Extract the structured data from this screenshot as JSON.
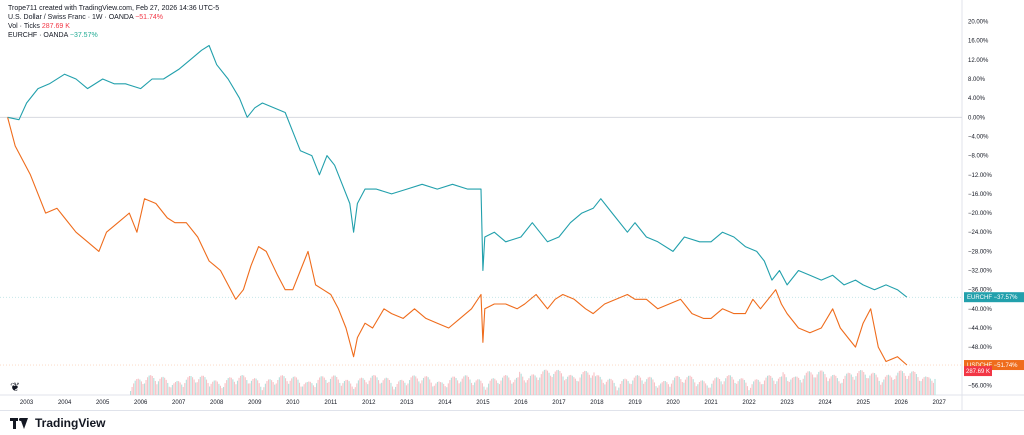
{
  "header": {
    "creator_line": "Trope711 created with TradingView.com, Feb 27, 2026 14:36 UTC-5",
    "main_symbol": "U.S. Dollar / Swiss Franc · 1W · OANDA",
    "main_change": "−51.74%",
    "vol_label": "Vol · Ticks",
    "vol_value": "287.69 K",
    "compare_symbol": "EURCHF · OANDA",
    "compare_change": "−37.57%"
  },
  "footer": {
    "brand": "TradingView"
  },
  "colors": {
    "usdchf": "#ef6c1c",
    "eurchf": "#22a0ac",
    "vol_up": "#b2dfdb",
    "vol_down": "#f7c1c5",
    "grid": "#eef0f3",
    "zero_line": "#d1d4dc"
  },
  "chart_data": {
    "type": "line",
    "title": "",
    "xlabel": "",
    "ylabel": "",
    "ylim": [
      -58,
      22
    ],
    "xlim": [
      2002.3,
      2027.6
    ],
    "x_ticks": [
      "2003",
      "2004",
      "2005",
      "2006",
      "2007",
      "2008",
      "2009",
      "2010",
      "2011",
      "2012",
      "2013",
      "2014",
      "2015",
      "2016",
      "2017",
      "2018",
      "2019",
      "2020",
      "2021",
      "2022",
      "2023",
      "2024",
      "2025",
      "2026",
      "2027"
    ],
    "y_ticks": [
      "20.00%",
      "16.00%",
      "12.00%",
      "8.00%",
      "4.00%",
      "0.00%",
      "−4.00%",
      "−8.00%",
      "−12.00%",
      "−16.00%",
      "−20.00%",
      "−24.00%",
      "−28.00%",
      "−32.00%",
      "−36.00%",
      "−40.00%",
      "−44.00%",
      "−48.00%",
      "−52.00%",
      "−56.00%"
    ],
    "y_tick_values": [
      20,
      16,
      12,
      8,
      4,
      0,
      -4,
      -8,
      -12,
      -16,
      -20,
      -24,
      -28,
      -32,
      -36,
      -40,
      -44,
      -48,
      -52,
      -56
    ],
    "series": [
      {
        "name": "EURCHF",
        "last_label": "EURCHF",
        "last_value": "−37.57%",
        "x": [
          2002.5,
          2002.8,
          2003.0,
          2003.3,
          2003.6,
          2004.0,
          2004.3,
          2004.6,
          2005.0,
          2005.3,
          2005.6,
          2006.0,
          2006.3,
          2006.6,
          2007.0,
          2007.3,
          2007.6,
          2007.8,
          2008.0,
          2008.3,
          2008.6,
          2008.8,
          2009.0,
          2009.2,
          2009.5,
          2009.8,
          2010.0,
          2010.2,
          2010.5,
          2010.7,
          2010.9,
          2011.1,
          2011.3,
          2011.5,
          2011.6,
          2011.7,
          2011.9,
          2012.2,
          2012.6,
          2013.0,
          2013.4,
          2013.8,
          2014.2,
          2014.6,
          2014.95,
          2015.0,
          2015.05,
          2015.3,
          2015.6,
          2016.0,
          2016.3,
          2016.7,
          2017.0,
          2017.3,
          2017.6,
          2017.9,
          2018.1,
          2018.4,
          2018.8,
          2019.0,
          2019.3,
          2019.6,
          2020.0,
          2020.3,
          2020.7,
          2021.0,
          2021.3,
          2021.6,
          2021.9,
          2022.2,
          2022.4,
          2022.6,
          2022.8,
          2023.0,
          2023.3,
          2023.6,
          2023.9,
          2024.2,
          2024.5,
          2024.8,
          2025.0,
          2025.3,
          2025.6,
          2025.9,
          2026.15
        ],
        "y": [
          0,
          -0.5,
          3,
          6,
          7,
          9,
          8,
          6,
          8,
          7,
          7,
          6,
          8,
          8,
          10,
          12,
          14,
          15,
          11,
          8,
          4,
          0,
          2,
          3,
          2,
          1,
          -3,
          -7,
          -8,
          -12,
          -8,
          -10,
          -14,
          -18,
          -24,
          -18,
          -15,
          -15,
          -16,
          -15,
          -14,
          -15,
          -14,
          -15,
          -15,
          -32,
          -25,
          -24,
          -26,
          -25,
          -22,
          -26,
          -25,
          -22,
          -20,
          -19,
          -17,
          -20,
          -24,
          -22,
          -25,
          -26,
          -28,
          -25,
          -26,
          -26,
          -24,
          -25,
          -27,
          -28,
          -30,
          -34,
          -32,
          -35,
          -32,
          -33,
          -34,
          -33,
          -35,
          -34,
          -35,
          -36,
          -35,
          -36,
          -37.57
        ]
      },
      {
        "name": "USDCHF",
        "last_label": "USDCHF",
        "last_value": "−51.74%",
        "x": [
          2002.5,
          2002.7,
          2002.9,
          2003.1,
          2003.3,
          2003.5,
          2003.8,
          2004.0,
          2004.3,
          2004.6,
          2004.9,
          2005.1,
          2005.4,
          2005.7,
          2005.9,
          2006.1,
          2006.4,
          2006.7,
          2006.9,
          2007.2,
          2007.5,
          2007.8,
          2007.95,
          2008.1,
          2008.3,
          2008.5,
          2008.7,
          2008.9,
          2009.1,
          2009.3,
          2009.6,
          2009.8,
          2010.0,
          2010.2,
          2010.4,
          2010.6,
          2010.8,
          2011.0,
          2011.2,
          2011.4,
          2011.6,
          2011.7,
          2011.9,
          2012.1,
          2012.4,
          2012.6,
          2012.9,
          2013.2,
          2013.5,
          2013.8,
          2014.1,
          2014.4,
          2014.7,
          2014.95,
          2015.0,
          2015.05,
          2015.3,
          2015.6,
          2015.9,
          2016.1,
          2016.4,
          2016.7,
          2016.9,
          2017.1,
          2017.4,
          2017.7,
          2017.9,
          2018.2,
          2018.5,
          2018.8,
          2019.0,
          2019.3,
          2019.6,
          2019.9,
          2020.2,
          2020.5,
          2020.8,
          2021.0,
          2021.3,
          2021.6,
          2021.9,
          2022.1,
          2022.3,
          2022.5,
          2022.7,
          2022.85,
          2023.0,
          2023.3,
          2023.6,
          2023.9,
          2024.2,
          2024.4,
          2024.6,
          2024.8,
          2025.0,
          2025.2,
          2025.4,
          2025.6,
          2025.9,
          2026.15
        ],
        "y": [
          0,
          -6,
          -9,
          -12,
          -16,
          -20,
          -19,
          -21,
          -24,
          -26,
          -28,
          -24,
          -22,
          -20,
          -24,
          -17,
          -18,
          -21,
          -22,
          -22,
          -25,
          -30,
          -31,
          -32,
          -35,
          -38,
          -36,
          -31,
          -27,
          -28,
          -33,
          -36,
          -36,
          -32,
          -28,
          -35,
          -36,
          -37,
          -40,
          -44,
          -50,
          -46,
          -43,
          -44,
          -40,
          -41,
          -42,
          -40,
          -42,
          -43,
          -44,
          -42,
          -40,
          -37,
          -47,
          -40,
          -39,
          -39,
          -40,
          -39,
          -37,
          -40,
          -38,
          -37,
          -38,
          -40,
          -41,
          -39,
          -38,
          -37,
          -38,
          -38,
          -40,
          -39,
          -38,
          -41,
          -42,
          -42,
          -40,
          -41,
          -41,
          -38,
          -40,
          -38,
          -36,
          -39,
          -41,
          -44,
          -45,
          -44,
          -40,
          -44,
          -46,
          -48,
          -43,
          -40,
          -48,
          -51,
          -50,
          -51.74
        ]
      }
    ]
  }
}
